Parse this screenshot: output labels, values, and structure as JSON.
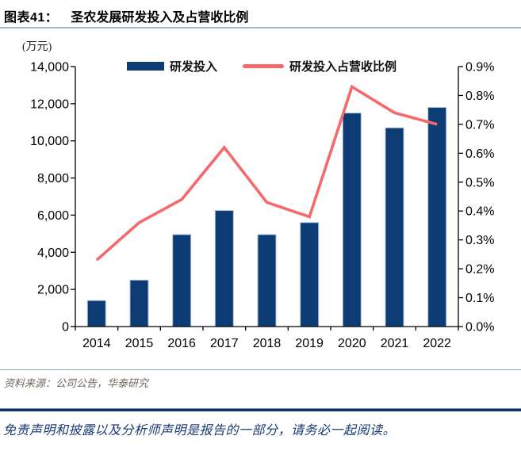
{
  "header": {
    "figure_label": "图表41：",
    "title": "圣农发展研发投入及占营收比例"
  },
  "chart_data": {
    "type": "combo-bar-line",
    "unit_label": "(万元)",
    "categories": [
      "2014",
      "2015",
      "2016",
      "2017",
      "2018",
      "2019",
      "2020",
      "2021",
      "2022"
    ],
    "series": [
      {
        "name": "研发投入",
        "type": "bar",
        "axis": "left",
        "unit": "万元",
        "values": [
          1400,
          2500,
          4950,
          6250,
          4950,
          5600,
          11500,
          10700,
          11800
        ]
      },
      {
        "name": "研发投入占营收比例",
        "type": "line",
        "axis": "right",
        "unit": "%",
        "values": [
          0.23,
          0.36,
          0.44,
          0.62,
          0.43,
          0.38,
          0.83,
          0.74,
          0.7
        ]
      }
    ],
    "left_axis": {
      "min": 0,
      "max": 14000,
      "tick_labels": [
        "0",
        "2,000",
        "4,000",
        "6,000",
        "8,000",
        "10,000",
        "12,000",
        "14,000"
      ]
    },
    "right_axis": {
      "min": 0,
      "max": 0.9,
      "tick_labels": [
        "0.0%",
        "0.1%",
        "0.2%",
        "0.3%",
        "0.4%",
        "0.5%",
        "0.6%",
        "0.7%",
        "0.8%",
        "0.9%"
      ]
    },
    "legend_position": "top",
    "grid": false
  },
  "footer": {
    "source": "资料来源：公司公告，华泰研究",
    "disclaimer": "免责声明和披露以及分析师声明是报告的一部分，请务必一起阅读。"
  },
  "colors": {
    "bar": "#0d3b73",
    "bar_edge": "#aebfd8",
    "line": "#f5696b",
    "axis": "#000000",
    "title_rule": "#a3bcd4",
    "source_rule": "#8fa8c0",
    "footer_rule": "#0f3268",
    "source_text": "#6b695f",
    "disclaimer_text": "#173a73"
  }
}
